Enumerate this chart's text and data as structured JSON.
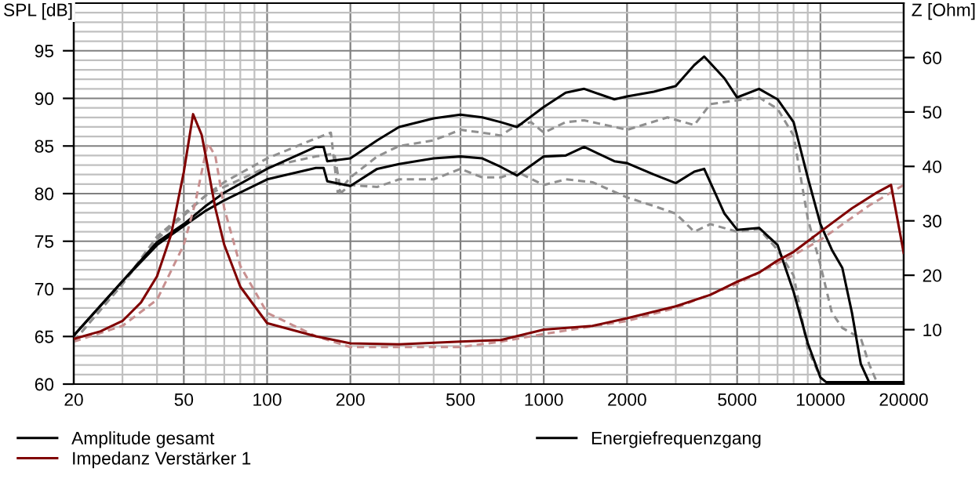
{
  "chart_data": {
    "type": "line",
    "xlabel": null,
    "ylabel": "SPL [dB]",
    "y2label": "Z [Ohm]",
    "log": "x",
    "grid": true,
    "legend": "bottom",
    "marker": "none",
    "xlim": [
      20,
      20000
    ],
    "xticks": [
      20,
      50,
      100,
      200,
      500,
      1000,
      2000,
      5000,
      10000,
      20000
    ],
    "ylim": [
      60,
      100
    ],
    "yticks": [
      60,
      65,
      70,
      75,
      80,
      85,
      90,
      95
    ],
    "y2lim": [
      0,
      70
    ],
    "y2ticks": [
      10,
      20,
      30,
      40,
      50,
      60
    ],
    "series": [
      {
        "name": "Amplitude gesamt",
        "color": "#000000",
        "line_style": "solid",
        "x": [
          20,
          30,
          40,
          50,
          60,
          70,
          100,
          150,
          160,
          165,
          200,
          250,
          300,
          400,
          500,
          600,
          700,
          800,
          1000,
          1200,
          1400,
          1800,
          2000,
          2500,
          3000,
          3500,
          3800,
          4500,
          5000,
          6000,
          7000,
          8000,
          9000,
          10000,
          11000,
          12000,
          13000,
          14000,
          15000,
          20000
        ],
        "values": [
          65.1,
          70.8,
          74.9,
          76.8,
          78.7,
          80.1,
          82.6,
          84.9,
          84.9,
          83.4,
          83.7,
          85.6,
          87.0,
          87.9,
          88.3,
          88.0,
          87.5,
          87.0,
          89.1,
          90.6,
          91.0,
          89.9,
          90.2,
          90.7,
          91.3,
          93.5,
          94.4,
          92.1,
          90.1,
          91.0,
          89.9,
          87.5,
          81.7,
          76.8,
          74.1,
          72.2,
          67.5,
          62.1,
          60.2,
          60.2
        ]
      },
      {
        "name": "Energiefrequenzgang",
        "color": "#000000",
        "line_style": "solid",
        "x": [
          20,
          30,
          40,
          50,
          60,
          70,
          100,
          150,
          160,
          165,
          200,
          250,
          300,
          400,
          500,
          600,
          700,
          800,
          1000,
          1200,
          1400,
          1800,
          2000,
          2500,
          3000,
          3500,
          3800,
          4500,
          5000,
          6000,
          7000,
          8000,
          9000,
          10000,
          10500,
          20000
        ],
        "values": [
          65.1,
          70.8,
          74.6,
          76.6,
          78.2,
          79.3,
          81.5,
          82.7,
          82.7,
          81.3,
          80.8,
          82.6,
          83.1,
          83.7,
          83.9,
          83.7,
          82.8,
          81.9,
          83.9,
          84.0,
          84.9,
          83.4,
          83.2,
          82.0,
          81.1,
          82.3,
          82.6,
          77.9,
          76.2,
          76.4,
          74.6,
          69.7,
          64.3,
          60.7,
          60.2,
          60.2
        ]
      },
      {
        "color": "#909090",
        "line_style": "dashed",
        "x": [
          20,
          30,
          40,
          50,
          60,
          70,
          100,
          150,
          170,
          180,
          200,
          250,
          300,
          400,
          500,
          600,
          700,
          800,
          900,
          1000,
          1200,
          1400,
          2000,
          2800,
          3500,
          4000,
          5000,
          6000,
          7000,
          8000,
          9000,
          10000,
          11000,
          12000,
          14000,
          15000,
          16000
        ],
        "values": [
          64.5,
          70.5,
          75.2,
          77.7,
          79.8,
          81.2,
          83.7,
          85.8,
          86.4,
          80.1,
          81.7,
          83.9,
          85.0,
          85.6,
          86.7,
          86.4,
          86.1,
          87.2,
          87.5,
          86.4,
          87.5,
          87.7,
          86.7,
          88.0,
          87.2,
          89.4,
          89.8,
          90.1,
          88.9,
          86.1,
          77.4,
          72.5,
          67.5,
          65.9,
          64.8,
          62.1,
          60.2
        ]
      },
      {
        "color": "#909090",
        "line_style": "dashed",
        "x": [
          20,
          30,
          40,
          50,
          60,
          100,
          150,
          175,
          185,
          200,
          250,
          300,
          400,
          500,
          600,
          700,
          800,
          1000,
          1200,
          1500,
          2000,
          2500,
          3000,
          3500,
          4000,
          5000,
          6000,
          7000,
          8000,
          9000,
          10000
        ],
        "values": [
          64.5,
          70.5,
          75.5,
          77.9,
          79.8,
          82.8,
          83.9,
          84.2,
          80.1,
          80.9,
          80.7,
          81.5,
          81.5,
          82.6,
          81.7,
          81.7,
          82.3,
          80.9,
          81.5,
          81.2,
          79.6,
          78.7,
          77.9,
          76.0,
          76.8,
          76.0,
          76.3,
          74.1,
          71.4,
          63.7,
          60.7
        ]
      },
      {
        "color": "#c89090",
        "line_style": "dashed",
        "axis": "y2",
        "x": [
          20,
          30,
          40,
          50,
          55,
          61,
          65,
          70,
          80,
          100,
          150,
          200,
          300,
          500,
          700,
          1000,
          2000,
          3000,
          5000,
          7000,
          8000,
          10000,
          15000,
          20000
        ],
        "values": [
          7.8,
          10.7,
          15.5,
          25.6,
          33.3,
          44.3,
          41.9,
          32.3,
          21.7,
          13.1,
          8.8,
          6.8,
          6.8,
          6.8,
          7.8,
          9.2,
          11.6,
          14.0,
          18.4,
          22.2,
          23.7,
          26.5,
          32.8,
          36.6
        ]
      },
      {
        "name": "Impedanz Verstärker 1",
        "color": "#800000",
        "line_style": "solid",
        "axis": "y2",
        "x": [
          20,
          25,
          30,
          35,
          40,
          45,
          50,
          54,
          58,
          60,
          65,
          70,
          80,
          100,
          150,
          200,
          300,
          500,
          700,
          1000,
          1500,
          2000,
          3000,
          4000,
          5000,
          6000,
          7000,
          8000,
          10000,
          13000,
          16000,
          18000,
          20000
        ],
        "values": [
          8.3,
          9.7,
          11.6,
          15.0,
          19.8,
          27.5,
          39.0,
          49.6,
          45.8,
          41.9,
          32.3,
          25.6,
          17.9,
          11.2,
          8.8,
          7.5,
          7.3,
          7.8,
          8.1,
          10.0,
          10.7,
          12.1,
          14.3,
          16.4,
          18.8,
          20.5,
          22.7,
          24.3,
          28.0,
          32.3,
          35.2,
          36.6,
          24.1
        ]
      }
    ]
  }
}
